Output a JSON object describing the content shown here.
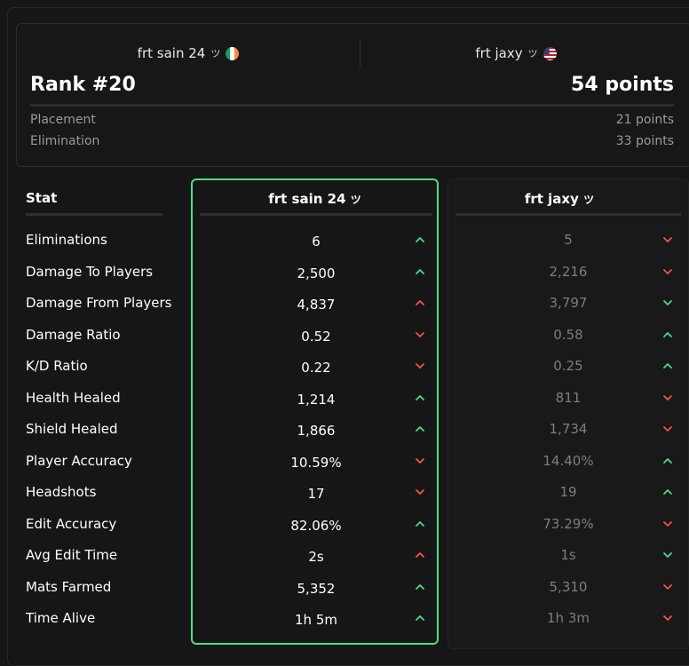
{
  "colors": {
    "up": "#4ade80",
    "down": "#ef5350",
    "up_warn": "#ef5350"
  },
  "header": {
    "player1": {
      "name": "frt sain 24",
      "tag": "ツ",
      "flag": "ireland-flag-icon"
    },
    "player2": {
      "name": "frt jaxy",
      "tag": "ツ",
      "flag": "usa-flag-icon"
    },
    "rank": "Rank #20",
    "points": "54 points",
    "placement_label": "Placement",
    "placement_value": "21 points",
    "elimination_label": "Elimination",
    "elimination_value": "33 points"
  },
  "table": {
    "stat_header": "Stat",
    "col1_title": "frt sain 24",
    "col1_tag": "ツ",
    "col2_title": "frt jaxy",
    "col2_tag": "ツ",
    "rows": [
      {
        "label": "Eliminations",
        "v1": "6",
        "a1": "up",
        "v2": "5",
        "a2": "down"
      },
      {
        "label": "Damage To Players",
        "v1": "2,500",
        "a1": "up",
        "v2": "2,216",
        "a2": "down"
      },
      {
        "label": "Damage From Players",
        "v1": "4,837",
        "a1": "up-red",
        "v2": "3,797",
        "a2": "down-green"
      },
      {
        "label": "Damage Ratio",
        "v1": "0.52",
        "a1": "down",
        "v2": "0.58",
        "a2": "up"
      },
      {
        "label": "K/D Ratio",
        "v1": "0.22",
        "a1": "down",
        "v2": "0.25",
        "a2": "up"
      },
      {
        "label": "Health Healed",
        "v1": "1,214",
        "a1": "up",
        "v2": "811",
        "a2": "down"
      },
      {
        "label": "Shield Healed",
        "v1": "1,866",
        "a1": "up",
        "v2": "1,734",
        "a2": "down"
      },
      {
        "label": "Player Accuracy",
        "v1": "10.59%",
        "a1": "down",
        "v2": "14.40%",
        "a2": "up"
      },
      {
        "label": "Headshots",
        "v1": "17",
        "a1": "down",
        "v2": "19",
        "a2": "up"
      },
      {
        "label": "Edit Accuracy",
        "v1": "82.06%",
        "a1": "up",
        "v2": "73.29%",
        "a2": "down"
      },
      {
        "label": "Avg Edit Time",
        "v1": "2s",
        "a1": "up-red",
        "v2": "1s",
        "a2": "down-green"
      },
      {
        "label": "Mats Farmed",
        "v1": "5,352",
        "a1": "up",
        "v2": "5,310",
        "a2": "down"
      },
      {
        "label": "Time Alive",
        "v1": "1h 5m",
        "a1": "up",
        "v2": "1h 3m",
        "a2": "down"
      }
    ]
  }
}
